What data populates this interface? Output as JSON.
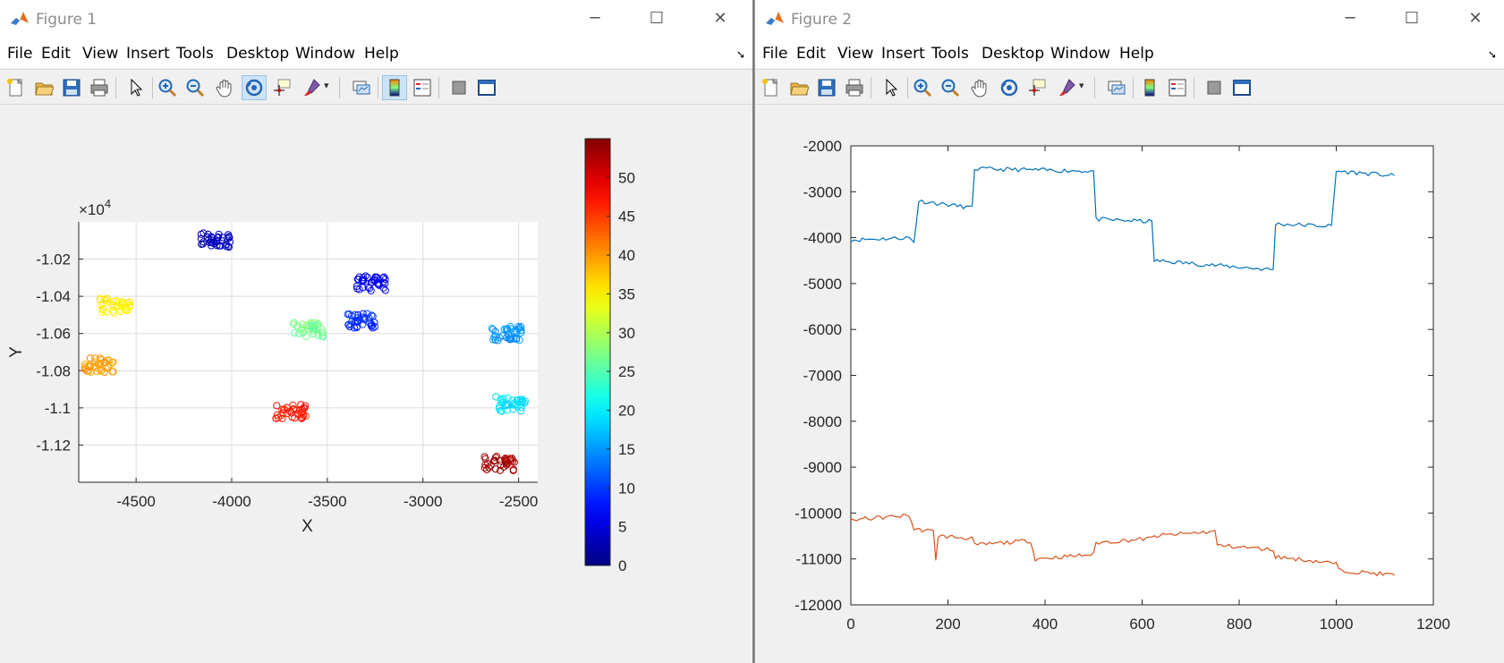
{
  "figure1": {
    "title": "Figure 1",
    "menu": [
      "File",
      "Edit",
      "View",
      "Insert",
      "Tools",
      "Desktop",
      "Window",
      "Help"
    ],
    "toolbar": [
      "new-figure-icon",
      "open-file-icon",
      "save-icon",
      "print-icon",
      "pointer-icon",
      "zoom-in-icon",
      "zoom-out-icon",
      "pan-hand-icon",
      "rotate-3d-icon",
      "data-cursor-icon",
      "brush-icon",
      "link-plot-icon",
      "colorbar-icon",
      "legend-icon",
      "hide-plot-tools-icon",
      "show-plot-tools-icon"
    ],
    "plot": {
      "xlabel": "X",
      "ylabel": "Y",
      "exponent_base": "×10",
      "exponent_power": "4",
      "xticks": [
        "-4500",
        "-4000",
        "-3500",
        "-3000",
        "-2500"
      ],
      "yticks": [
        "-1.02",
        "-1.04",
        "-1.06",
        "-1.08",
        "-1.1",
        "-1.12"
      ],
      "colorbar_ticks": [
        "0",
        "5",
        "10",
        "15",
        "20",
        "25",
        "30",
        "35",
        "40",
        "45",
        "50"
      ]
    }
  },
  "figure2": {
    "title": "Figure 2",
    "menu": [
      "File",
      "Edit",
      "View",
      "Insert",
      "Tools",
      "Desktop",
      "Window",
      "Help"
    ],
    "toolbar": [
      "new-figure-icon",
      "open-file-icon",
      "save-icon",
      "print-icon",
      "pointer-icon",
      "zoom-in-icon",
      "zoom-out-icon",
      "pan-hand-icon",
      "rotate-3d-icon",
      "data-cursor-icon",
      "brush-icon",
      "link-plot-icon",
      "colorbar-icon",
      "legend-icon",
      "hide-plot-tools-icon",
      "show-plot-tools-icon"
    ],
    "plot": {
      "xticks": [
        "0",
        "200",
        "400",
        "600",
        "800",
        "1000",
        "1200"
      ],
      "yticks": [
        "-2000",
        "-3000",
        "-4000",
        "-5000",
        "-6000",
        "-7000",
        "-8000",
        "-9000",
        "-10000",
        "-11000",
        "-12000"
      ]
    }
  },
  "chart_data": [
    {
      "type": "scatter",
      "title": "",
      "xlabel": "X",
      "ylabel": "Y",
      "xlim": [
        -4800,
        -2400
      ],
      "ylim": [
        -11.4,
        -10.0
      ],
      "y_exponent": "×10^4",
      "colormap": "jet",
      "color_range": [
        0,
        55
      ],
      "clusters": [
        {
          "x": -4080,
          "y": -10.1,
          "c": 3
        },
        {
          "x": -3270,
          "y": -10.33,
          "c": 6
        },
        {
          "x": -3330,
          "y": -10.53,
          "c": 9
        },
        {
          "x": -2560,
          "y": -10.6,
          "c": 15
        },
        {
          "x": -2540,
          "y": -10.98,
          "c": 19
        },
        {
          "x": -3600,
          "y": -10.58,
          "c": 27
        },
        {
          "x": -4610,
          "y": -10.45,
          "c": 35
        },
        {
          "x": -4690,
          "y": -10.77,
          "c": 40
        },
        {
          "x": -3690,
          "y": -11.02,
          "c": 47
        },
        {
          "x": -2600,
          "y": -11.3,
          "c": 53
        }
      ]
    },
    {
      "type": "line",
      "title": "",
      "xlim": [
        0,
        1200
      ],
      "ylim": [
        -12000,
        -2000
      ],
      "series": [
        {
          "color": "#0072bd",
          "values": [
            [
              0,
              -4050
            ],
            [
              120,
              -4000
            ],
            [
              130,
              -4100
            ],
            [
              140,
              -3200
            ],
            [
              250,
              -3350
            ],
            [
              255,
              -2500
            ],
            [
              500,
              -2550
            ],
            [
              505,
              -3600
            ],
            [
              620,
              -3650
            ],
            [
              625,
              -4500
            ],
            [
              870,
              -4700
            ],
            [
              875,
              -3700
            ],
            [
              990,
              -3750
            ],
            [
              1000,
              -2550
            ],
            [
              1120,
              -2650
            ]
          ]
        },
        {
          "color": "#d95319",
          "values": [
            [
              0,
              -10150
            ],
            [
              120,
              -10050
            ],
            [
              130,
              -10350
            ],
            [
              170,
              -10400
            ],
            [
              175,
              -11000
            ],
            [
              180,
              -10500
            ],
            [
              250,
              -10550
            ],
            [
              255,
              -10700
            ],
            [
              370,
              -10600
            ],
            [
              380,
              -11000
            ],
            [
              500,
              -10900
            ],
            [
              505,
              -10650
            ],
            [
              620,
              -10550
            ],
            [
              625,
              -10500
            ],
            [
              750,
              -10400
            ],
            [
              755,
              -10700
            ],
            [
              870,
              -10800
            ],
            [
              875,
              -10950
            ],
            [
              1000,
              -11100
            ],
            [
              1005,
              -11250
            ],
            [
              1120,
              -11350
            ]
          ]
        }
      ]
    }
  ]
}
